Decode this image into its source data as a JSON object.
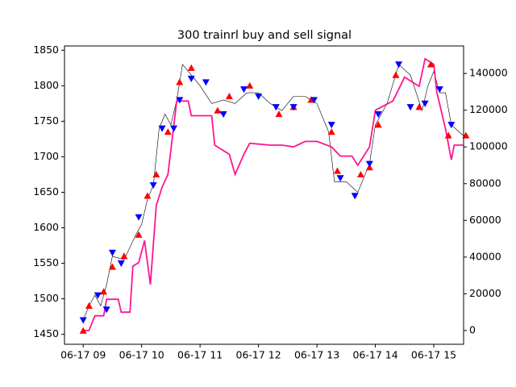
{
  "chart_data": {
    "type": "line",
    "title": "300 trainrl buy and sell signal",
    "xlim": [
      8.68,
      15.51
    ],
    "xticks": [
      {
        "value": 9,
        "label": "06-17 09"
      },
      {
        "value": 10,
        "label": "06-17 10"
      },
      {
        "value": 11,
        "label": "06-17 11"
      },
      {
        "value": 12,
        "label": "06-17 12"
      },
      {
        "value": 13,
        "label": "06-17 13"
      },
      {
        "value": 14,
        "label": "06-17 14"
      },
      {
        "value": 15,
        "label": "06-17 15"
      }
    ],
    "ylim": [
      1436,
      1856
    ],
    "yticks": [
      1450,
      1500,
      1550,
      1600,
      1650,
      1700,
      1750,
      1800,
      1850
    ],
    "y2lim": [
      -7500,
      155000
    ],
    "y2ticks": [
      0,
      20000,
      40000,
      60000,
      80000,
      100000,
      120000,
      140000
    ],
    "series": [
      {
        "style": "line",
        "color": "#000000",
        "x": [
          9.0,
          9.1,
          9.2,
          9.3,
          9.4,
          9.5,
          9.7,
          9.9,
          10.0,
          10.1,
          10.2,
          10.3,
          10.4,
          10.5,
          10.6,
          10.7,
          10.8,
          10.9,
          11.0,
          11.2,
          11.4,
          11.6,
          11.8,
          12.0,
          12.2,
          12.4,
          12.6,
          12.8,
          13.0,
          13.2,
          13.3,
          13.5,
          13.7,
          13.9,
          14.0,
          14.2,
          14.4,
          14.6,
          14.8,
          14.9,
          15.0,
          15.1,
          15.2,
          15.3,
          15.5
        ],
        "values": [
          1470,
          1490,
          1505,
          1490,
          1520,
          1560,
          1555,
          1590,
          1605,
          1640,
          1660,
          1740,
          1760,
          1745,
          1780,
          1830,
          1820,
          1810,
          1800,
          1775,
          1780,
          1775,
          1790,
          1790,
          1775,
          1765,
          1785,
          1785,
          1775,
          1735,
          1665,
          1665,
          1650,
          1690,
          1745,
          1775,
          1830,
          1815,
          1765,
          1800,
          1820,
          1790,
          1790,
          1745,
          1730
        ]
      },
      {
        "style": "line",
        "color": "#ff1493",
        "axis": "y2",
        "x": [
          9.0,
          9.1,
          9.2,
          9.35,
          9.4,
          9.6,
          9.65,
          9.8,
          9.85,
          9.95,
          10.05,
          10.15,
          10.25,
          10.35,
          10.45,
          10.6,
          10.8,
          10.85,
          11.2,
          11.25,
          11.5,
          11.6,
          11.75,
          11.85,
          12.2,
          12.4,
          12.6,
          12.8,
          13.0,
          13.25,
          13.4,
          13.6,
          13.7,
          13.9,
          14.0,
          14.3,
          14.5,
          14.75,
          14.85,
          15.0,
          15.05,
          15.2,
          15.3,
          15.35,
          15.5
        ],
        "values": [
          0,
          0,
          8000,
          8000,
          17000,
          17000,
          10000,
          10000,
          35000,
          37000,
          49000,
          25000,
          68000,
          78000,
          85000,
          125000,
          125000,
          117000,
          117000,
          101000,
          96000,
          85000,
          96000,
          102000,
          101000,
          101000,
          100000,
          103000,
          103000,
          100000,
          95000,
          95000,
          90000,
          100000,
          120000,
          125000,
          138000,
          133000,
          148000,
          145000,
          130000,
          110000,
          93000,
          101000,
          101000
        ]
      },
      {
        "style": "triangle-up",
        "color": "#ff0000",
        "x": [
          9.0,
          9.1,
          9.35,
          9.5,
          9.7,
          9.95,
          10.1,
          10.25,
          10.45,
          10.65,
          10.85,
          11.3,
          11.5,
          11.85,
          12.35,
          12.6,
          12.9,
          13.25,
          13.35,
          13.75,
          13.9,
          14.05,
          14.35,
          14.75,
          14.95,
          15.25,
          15.55
        ],
        "values": [
          1455,
          1490,
          1510,
          1545,
          1560,
          1590,
          1645,
          1675,
          1735,
          1805,
          1825,
          1765,
          1785,
          1800,
          1760,
          1770,
          1780,
          1735,
          1680,
          1675,
          1685,
          1745,
          1815,
          1770,
          1830,
          1730,
          1730
        ]
      },
      {
        "style": "triangle-down",
        "color": "#0000ff",
        "x": [
          9.0,
          9.25,
          9.4,
          9.5,
          9.65,
          9.95,
          10.2,
          10.35,
          10.55,
          10.65,
          10.85,
          11.1,
          11.4,
          11.75,
          12.0,
          12.3,
          12.6,
          12.95,
          13.25,
          13.4,
          13.65,
          13.9,
          14.05,
          14.4,
          14.6,
          14.85,
          15.1,
          15.3
        ],
        "values": [
          1470,
          1505,
          1485,
          1565,
          1550,
          1615,
          1660,
          1740,
          1740,
          1780,
          1810,
          1805,
          1760,
          1795,
          1785,
          1770,
          1770,
          1780,
          1745,
          1670,
          1645,
          1690,
          1760,
          1830,
          1770,
          1775,
          1795,
          1745
        ]
      }
    ]
  }
}
